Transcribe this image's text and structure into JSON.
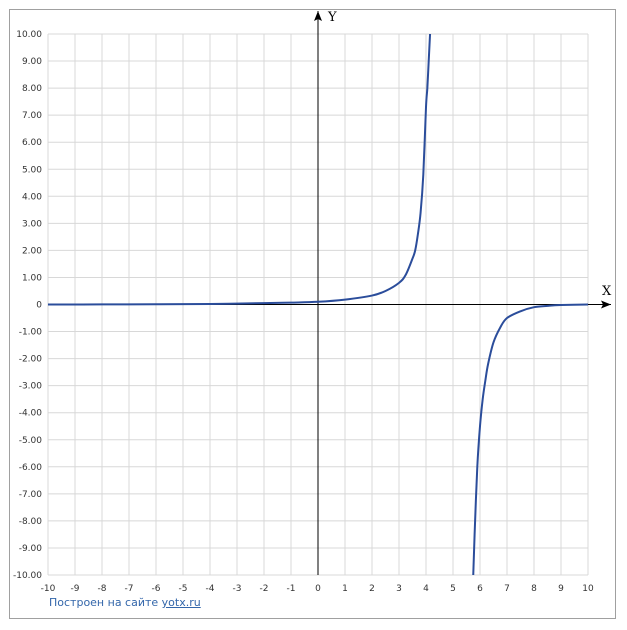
{
  "chart_data": {
    "type": "line",
    "xlabel": "X",
    "ylabel": "Y",
    "xlim": [
      -10,
      10
    ],
    "ylim": [
      -10,
      10
    ],
    "grid": true,
    "x_ticks": [
      "-10",
      "-9",
      "-8",
      "-7",
      "-6",
      "-5",
      "-4",
      "-3",
      "-2",
      "-1",
      "0",
      "1",
      "2",
      "3",
      "4",
      "5",
      "6",
      "7",
      "8",
      "9",
      "10"
    ],
    "y_ticks": [
      "-10.00",
      "-9.00",
      "-8.00",
      "-7.00",
      "-6.00",
      "-5.00",
      "-4.00",
      "-3.00",
      "-2.00",
      "-1.00",
      "0",
      "1.00",
      "2.00",
      "3.00",
      "4.00",
      "5.00",
      "6.00",
      "7.00",
      "8.00",
      "9.00",
      "10.00"
    ],
    "series": [
      {
        "color": "#2b4d9b",
        "segments": [
          {
            "x": [
              -10,
              -8,
              -6,
              -4,
              -2,
              -1,
              0,
              1,
              2,
              2.5,
              3,
              3.25,
              3.5,
              3.6,
              3.7,
              3.8,
              3.9,
              4.0,
              4.05,
              4.1,
              4.15
            ],
            "y": [
              0.001,
              0.003,
              0.008,
              0.02,
              0.05,
              0.07,
              0.1,
              0.18,
              0.33,
              0.5,
              0.8,
              1.1,
              1.7,
              2.0,
              2.6,
              3.4,
              4.8,
              7.3,
              8.0,
              9.0,
              10.0
            ]
          },
          {
            "x": [
              5.75,
              5.8,
              5.9,
              6.0,
              6.1,
              6.2,
              6.3,
              6.5,
              6.75,
              7,
              7.5,
              8,
              8.5,
              9,
              10
            ],
            "y": [
              -10.0,
              -8.5,
              -6.0,
              -4.5,
              -3.5,
              -2.8,
              -2.2,
              -1.4,
              -0.85,
              -0.5,
              -0.25,
              -0.1,
              -0.05,
              -0.02,
              0.0
            ]
          }
        ]
      }
    ]
  },
  "credit": {
    "text": "Построен на сайте ",
    "link": "yotx.ru"
  }
}
